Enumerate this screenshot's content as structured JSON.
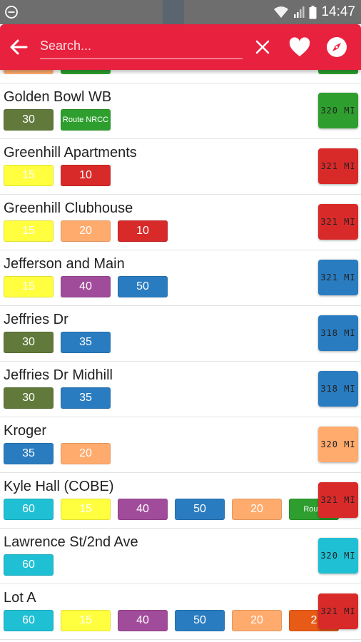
{
  "status_bar": {
    "time": "14:47"
  },
  "toolbar": {
    "search_placeholder": "Search..."
  },
  "colors": {
    "toolbar": "#e8213f",
    "olive": "#617a3b",
    "green": "#2e9f2e",
    "yellow": "#ffff40",
    "red": "#d92a2a",
    "peach": "#ffab6e",
    "purple": "#a14c9b",
    "blue": "#2a7cc0",
    "cyan": "#1fc0d4",
    "orange": "#e85b17"
  },
  "stops": [
    {
      "name": "Golden Bowl WB",
      "distance": "320 MI",
      "distance_color": "#2e9f2e",
      "routes": [
        {
          "label": "30",
          "color": "#617a3b"
        },
        {
          "label": "Route NRCC",
          "color": "#2e9f2e",
          "small": true
        }
      ]
    },
    {
      "name": "Greenhill Apartments",
      "distance": "321 MI",
      "distance_color": "#d92a2a",
      "routes": [
        {
          "label": "15",
          "color": "#ffff40"
        },
        {
          "label": "10",
          "color": "#d92a2a"
        }
      ]
    },
    {
      "name": "Greenhill Clubhouse",
      "distance": "321 MI",
      "distance_color": "#d92a2a",
      "routes": [
        {
          "label": "15",
          "color": "#ffff40"
        },
        {
          "label": "20",
          "color": "#ffab6e"
        },
        {
          "label": "10",
          "color": "#d92a2a"
        }
      ]
    },
    {
      "name": "Jefferson and Main",
      "distance": "321 MI",
      "distance_color": "#2a7cc0",
      "routes": [
        {
          "label": "15",
          "color": "#ffff40"
        },
        {
          "label": "40",
          "color": "#a14c9b"
        },
        {
          "label": "50",
          "color": "#2a7cc0"
        }
      ]
    },
    {
      "name": "Jeffries Dr",
      "distance": "318 MI",
      "distance_color": "#2a7cc0",
      "routes": [
        {
          "label": "30",
          "color": "#617a3b"
        },
        {
          "label": "35",
          "color": "#2a7cc0"
        }
      ]
    },
    {
      "name": "Jeffries Dr Midhill",
      "distance": "318 MI",
      "distance_color": "#2a7cc0",
      "routes": [
        {
          "label": "30",
          "color": "#617a3b"
        },
        {
          "label": "35",
          "color": "#2a7cc0"
        }
      ]
    },
    {
      "name": "Kroger",
      "distance": "320 MI",
      "distance_color": "#ffab6e",
      "routes": [
        {
          "label": "35",
          "color": "#2a7cc0"
        },
        {
          "label": "20",
          "color": "#ffab6e"
        }
      ]
    },
    {
      "name": "Kyle Hall (COBE)",
      "distance": "321 MI",
      "distance_color": "#d92a2a",
      "routes": [
        {
          "label": "60",
          "color": "#1fc0d4"
        },
        {
          "label": "15",
          "color": "#ffff40"
        },
        {
          "label": "40",
          "color": "#a14c9b"
        },
        {
          "label": "50",
          "color": "#2a7cc0"
        },
        {
          "label": "20",
          "color": "#ffab6e"
        },
        {
          "label": "Route",
          "color": "#2e9f2e",
          "small": true
        }
      ]
    },
    {
      "name": "Lawrence St/2nd Ave",
      "distance": "320 MI",
      "distance_color": "#1fc0d4",
      "routes": [
        {
          "label": "60",
          "color": "#1fc0d4"
        }
      ]
    },
    {
      "name": "Lot A",
      "distance": "321 MI",
      "distance_color": "#d92a2a",
      "routes": [
        {
          "label": "60",
          "color": "#1fc0d4"
        },
        {
          "label": "15",
          "color": "#ffff40"
        },
        {
          "label": "40",
          "color": "#a14c9b"
        },
        {
          "label": "50",
          "color": "#2a7cc0"
        },
        {
          "label": "20",
          "color": "#ffab6e"
        },
        {
          "label": "2",
          "color": "#e85b17"
        }
      ]
    }
  ]
}
